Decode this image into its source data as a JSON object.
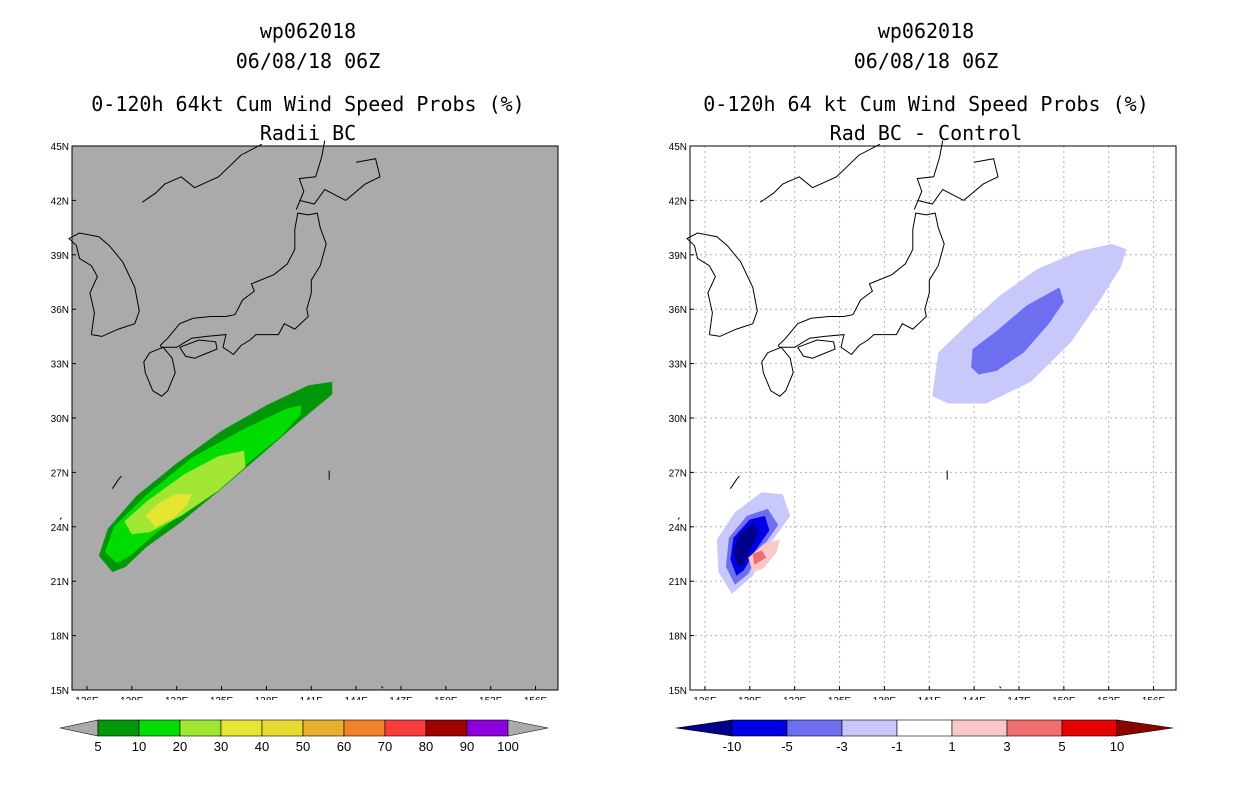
{
  "chart_data": [
    {
      "type": "contour-map",
      "storm_id": "wp062018",
      "datetime": "06/08/18 06Z",
      "title": "0-120h 64kt Cum Wind Speed Probs (%)",
      "subtitle": "Radii BC",
      "lon_ticks": [
        "126E",
        "129E",
        "132E",
        "135E",
        "138E",
        "141E",
        "144E",
        "147E",
        "150E",
        "153E",
        "156E"
      ],
      "lat_ticks": [
        "45N",
        "42N",
        "39N",
        "36N",
        "33N",
        "30N",
        "27N",
        "24N",
        "21N",
        "18N",
        "15N"
      ],
      "lon_range": [
        125,
        157.5
      ],
      "lat_range": [
        15,
        45
      ],
      "colorbar": {
        "labels": [
          "5",
          "10",
          "20",
          "30",
          "40",
          "50",
          "60",
          "70",
          "80",
          "90",
          "100"
        ],
        "colors": [
          "#00960a",
          "#00dc00",
          "#a0e632",
          "#e6e632",
          "#e6dc32",
          "#e6af2d",
          "#f08228",
          "#fa3c3c",
          "#a00000",
          "#8c00dc"
        ]
      },
      "contours": [
        {
          "level": "5-10",
          "color": "#00960a",
          "points": [
            [
              127.7,
              21.5
            ],
            [
              126.8,
              22.4
            ],
            [
              127.4,
              23.9
            ],
            [
              129.3,
              25.7
            ],
            [
              132.0,
              27.5
            ],
            [
              135.0,
              29.3
            ],
            [
              138.0,
              30.7
            ],
            [
              140.8,
              31.8
            ],
            [
              142.4,
              32.0
            ],
            [
              142.4,
              31.3
            ],
            [
              140.2,
              29.8
            ],
            [
              137.7,
              28.0
            ],
            [
              135.0,
              26.1
            ],
            [
              132.2,
              24.2
            ],
            [
              130.0,
              22.9
            ],
            [
              128.6,
              21.8
            ]
          ]
        },
        {
          "level": "10-20",
          "color": "#00dc00",
          "points": [
            [
              128.0,
              22.0
            ],
            [
              127.2,
              22.6
            ],
            [
              127.8,
              24.0
            ],
            [
              130.0,
              25.8
            ],
            [
              133.0,
              27.8
            ],
            [
              136.5,
              29.4
            ],
            [
              139.3,
              30.5
            ],
            [
              140.3,
              30.7
            ],
            [
              140.3,
              30.2
            ],
            [
              139.0,
              29.0
            ],
            [
              136.3,
              27.2
            ],
            [
              133.2,
              25.3
            ],
            [
              130.4,
              23.5
            ],
            [
              128.9,
              22.4
            ]
          ]
        },
        {
          "level": "20-30",
          "color": "#a0e632",
          "points": [
            [
              129.0,
              23.6
            ],
            [
              128.5,
              24.3
            ],
            [
              130.0,
              25.4
            ],
            [
              132.5,
              26.9
            ],
            [
              134.8,
              27.9
            ],
            [
              136.5,
              28.2
            ],
            [
              136.6,
              27.3
            ],
            [
              134.8,
              26.0
            ],
            [
              132.3,
              24.6
            ],
            [
              130.2,
              23.7
            ]
          ]
        },
        {
          "level": "30-40",
          "color": "#e6e632",
          "points": [
            [
              130.6,
              24.0
            ],
            [
              129.9,
              24.6
            ],
            [
              130.8,
              25.3
            ],
            [
              131.9,
              25.8
            ],
            [
              133.0,
              25.8
            ],
            [
              132.7,
              25.2
            ],
            [
              131.8,
              24.5
            ]
          ]
        }
      ]
    },
    {
      "type": "contour-map",
      "storm_id": "wp062018",
      "datetime": "06/08/18 06Z",
      "title": "0-120h 64 kt Cum Wind Speed Probs (%)",
      "subtitle": "Rad BC - Control",
      "lon_ticks": [
        "126E",
        "129E",
        "132E",
        "135E",
        "138E",
        "141E",
        "144E",
        "147E",
        "150E",
        "153E",
        "156E"
      ],
      "lat_ticks": [
        "45N",
        "42N",
        "39N",
        "36N",
        "33N",
        "30N",
        "27N",
        "24N",
        "21N",
        "18N",
        "15N"
      ],
      "lon_range": [
        125,
        157.5
      ],
      "lat_range": [
        15,
        45
      ],
      "colorbar": {
        "labels": [
          "-10",
          "-5",
          "-3",
          "-1",
          "1",
          "3",
          "5",
          "10"
        ],
        "colors": [
          "#00008c",
          "#0000e6",
          "#6e6ef0",
          "#c8c8fa",
          "#ffffff",
          "#fac8c8",
          "#f06e6e",
          "#e60000",
          "#8c0000"
        ]
      },
      "contours": [
        {
          "level": "-3 to -1",
          "color": "#c8c8fa",
          "points": [
            [
              141.2,
              31.2
            ],
            [
              141.6,
              33.6
            ],
            [
              143.6,
              35.2
            ],
            [
              145.8,
              36.8
            ],
            [
              148.2,
              38.2
            ],
            [
              151.0,
              39.2
            ],
            [
              153.2,
              39.6
            ],
            [
              154.2,
              39.3
            ],
            [
              153.8,
              38.3
            ],
            [
              152.5,
              36.6
            ],
            [
              150.5,
              34.2
            ],
            [
              147.8,
              32.0
            ],
            [
              144.8,
              30.8
            ],
            [
              142.3,
              30.8
            ]
          ]
        },
        {
          "level": "-5 to -3",
          "color": "#6e6ef0",
          "points": [
            [
              143.8,
              32.8
            ],
            [
              143.9,
              33.8
            ],
            [
              145.5,
              34.8
            ],
            [
              147.5,
              36.2
            ],
            [
              149.7,
              37.2
            ],
            [
              150.0,
              36.4
            ],
            [
              149.0,
              35.2
            ],
            [
              147.3,
              33.6
            ],
            [
              145.5,
              32.6
            ],
            [
              144.3,
              32.4
            ]
          ]
        },
        {
          "level": "-3 to -1",
          "color": "#c8c8fa",
          "points": [
            [
              127.8,
              20.3
            ],
            [
              126.9,
              21.5
            ],
            [
              126.8,
              23.3
            ],
            [
              128.0,
              24.8
            ],
            [
              129.8,
              25.9
            ],
            [
              131.2,
              25.8
            ],
            [
              131.7,
              24.6
            ],
            [
              130.3,
              23.0
            ],
            [
              129.2,
              21.3
            ]
          ]
        },
        {
          "level": "-5 to -3",
          "color": "#6e6ef0",
          "points": [
            [
              128.0,
              20.8
            ],
            [
              127.4,
              21.8
            ],
            [
              127.6,
              23.4
            ],
            [
              128.8,
              24.6
            ],
            [
              130.2,
              25.0
            ],
            [
              130.9,
              24.1
            ],
            [
              129.8,
              22.8
            ],
            [
              128.9,
              21.4
            ]
          ]
        },
        {
          "level": "-10 to -5",
          "color": "#0000e6",
          "points": [
            [
              128.1,
              21.3
            ],
            [
              127.7,
              22.2
            ],
            [
              127.9,
              23.4
            ],
            [
              129.0,
              24.4
            ],
            [
              130.0,
              24.6
            ],
            [
              130.3,
              23.8
            ],
            [
              129.3,
              22.6
            ],
            [
              128.6,
              21.6
            ]
          ]
        },
        {
          "level": "< -10",
          "color": "#00008c",
          "points": [
            [
              128.2,
              21.8
            ],
            [
              127.9,
              22.6
            ],
            [
              128.3,
              23.6
            ],
            [
              129.2,
              24.2
            ],
            [
              129.6,
              23.7
            ],
            [
              129.0,
              22.7
            ],
            [
              128.6,
              21.9
            ]
          ]
        },
        {
          "level": "1 to 3",
          "color": "#fac8c8",
          "points": [
            [
              129.2,
              21.5
            ],
            [
              128.9,
              22.3
            ],
            [
              130.0,
              23.1
            ],
            [
              131.0,
              23.3
            ],
            [
              130.8,
              22.6
            ],
            [
              129.9,
              21.7
            ]
          ]
        },
        {
          "level": "3 to 5",
          "color": "#f06e6e",
          "points": [
            [
              129.3,
              21.9
            ],
            [
              129.2,
              22.5
            ],
            [
              129.8,
              22.7
            ],
            [
              130.1,
              22.3
            ]
          ]
        }
      ]
    }
  ]
}
